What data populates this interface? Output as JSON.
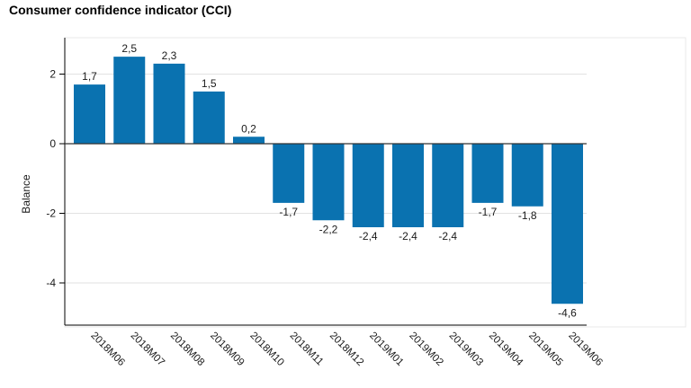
{
  "chart_data": {
    "type": "bar",
    "title": "Consumer confidence indicator (CCI)",
    "xlabel": "",
    "ylabel": "Balance",
    "ylim": [
      -5.1,
      3.0
    ],
    "yticks": [
      -4,
      -2,
      0,
      2
    ],
    "ytick_labels": [
      "-4",
      "-2",
      "0",
      "2"
    ],
    "grid": true,
    "legend": "none",
    "bar_color": "#0a72b0",
    "categories": [
      "2018M06",
      "2018M07",
      "2018M08",
      "2018M09",
      "2018M10",
      "2018M11",
      "2018M12",
      "2019M01",
      "2019M02",
      "2019M03",
      "2019M04",
      "2019M05",
      "2019M06"
    ],
    "values": [
      1.7,
      2.5,
      2.3,
      1.5,
      0.2,
      -1.7,
      -2.2,
      -2.4,
      -2.4,
      -2.4,
      -1.7,
      -1.8,
      -4.6
    ],
    "value_labels": [
      "1,7",
      "2,5",
      "2,3",
      "1,5",
      "0,2",
      "-1,7",
      "-2,2",
      "-2,4",
      "-2,4",
      "-2,4",
      "-1,7",
      "-1,8",
      "-4,6"
    ]
  }
}
